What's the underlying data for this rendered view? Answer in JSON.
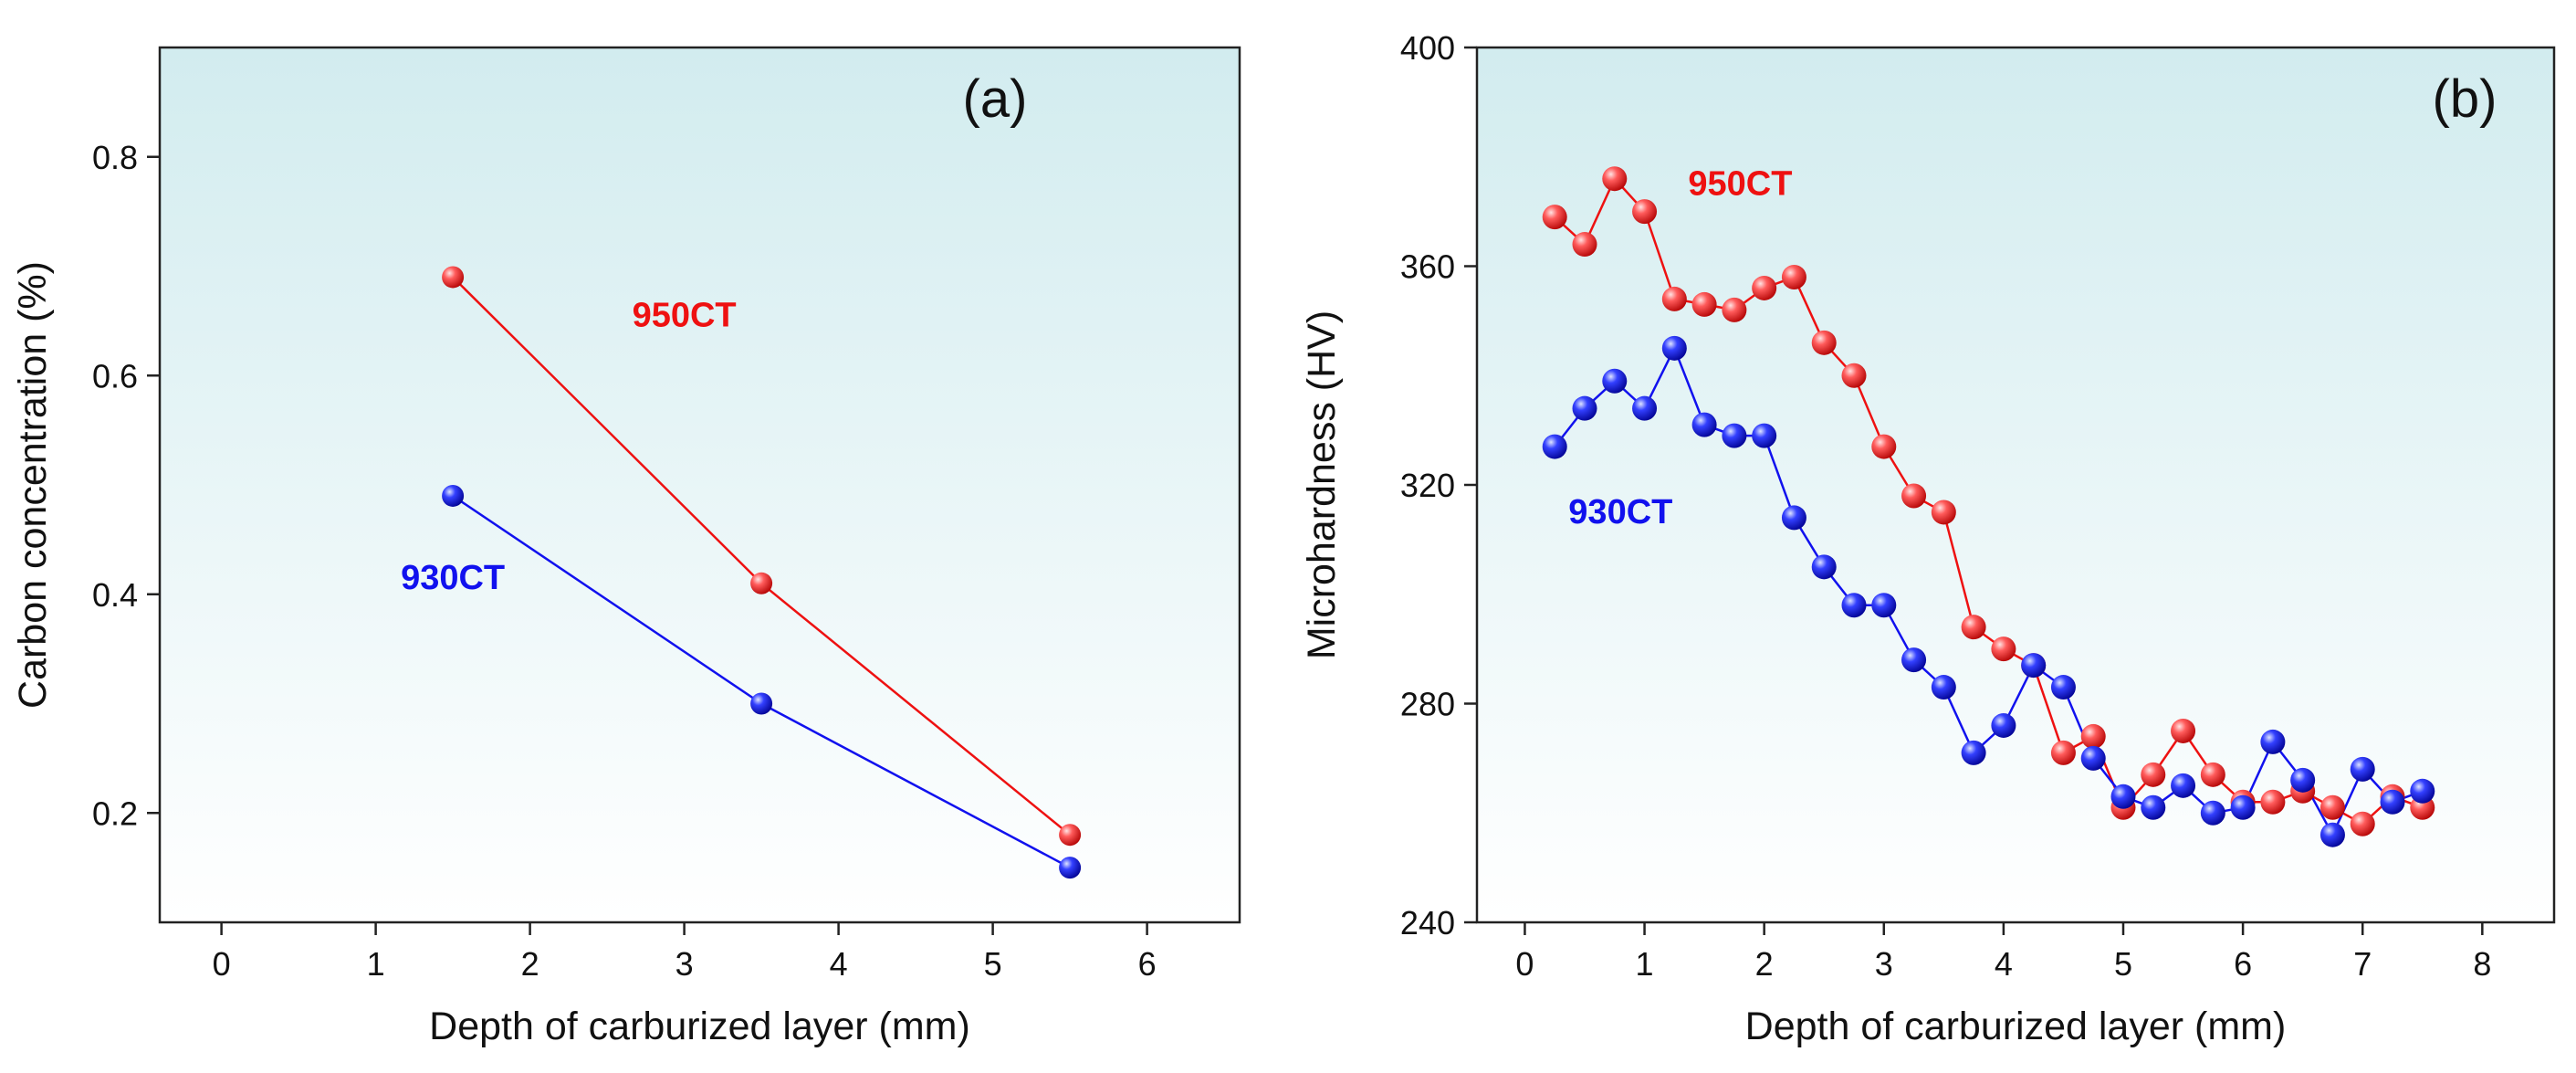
{
  "chart_data": [
    {
      "id": "a",
      "type": "line",
      "panel_label": "(a)",
      "xlabel": "Depth of carburized layer (mm)",
      "ylabel": "Carbon concentration (%)",
      "xlim": [
        -0.4,
        6.6
      ],
      "ylim": [
        0.1,
        0.9
      ],
      "xticks": [
        0,
        1,
        2,
        3,
        4,
        5,
        6
      ],
      "yticks": [
        0.2,
        0.4,
        0.6,
        0.8
      ],
      "ytick_labels": [
        "0.2",
        "0.4",
        "0.6",
        "0.8"
      ],
      "series": [
        {
          "name": "950CT",
          "color": "#ee1111",
          "x": [
            1.5,
            3.5,
            5.5
          ],
          "y": [
            0.69,
            0.41,
            0.18
          ]
        },
        {
          "name": "930CT",
          "color": "#1111ee",
          "x": [
            1.5,
            3.5,
            5.5
          ],
          "y": [
            0.49,
            0.3,
            0.15
          ]
        }
      ],
      "annotations": [
        {
          "text": "950CT",
          "color": "#ee1111",
          "x": 3.0,
          "y": 0.645
        },
        {
          "text": "930CT",
          "color": "#1111ee",
          "x": 1.5,
          "y": 0.405
        }
      ]
    },
    {
      "id": "b",
      "type": "line",
      "panel_label": "(b)",
      "xlabel": "Depth of carburized layer (mm)",
      "ylabel": "Microhardness (HV)",
      "xlim": [
        -0.4,
        8.6
      ],
      "ylim": [
        240,
        400
      ],
      "xticks": [
        0,
        1,
        2,
        3,
        4,
        5,
        6,
        7,
        8
      ],
      "yticks": [
        240,
        280,
        320,
        360,
        400
      ],
      "ytick_labels": [
        "240",
        "280",
        "320",
        "360",
        "400"
      ],
      "series": [
        {
          "name": "950CT",
          "color": "#ee1111",
          "x": [
            0.25,
            0.5,
            0.75,
            1.0,
            1.25,
            1.5,
            1.75,
            2.0,
            2.25,
            2.5,
            2.75,
            3.0,
            3.25,
            3.5,
            3.75,
            4.0,
            4.25,
            4.5,
            4.75,
            5.0,
            5.25,
            5.5,
            5.75,
            6.0,
            6.25,
            6.5,
            6.75,
            7.0,
            7.25,
            7.5
          ],
          "y": [
            369,
            364,
            376,
            370,
            354,
            353,
            352,
            356,
            358,
            346,
            340,
            327,
            318,
            315,
            294,
            290,
            287,
            271,
            274,
            261,
            267,
            275,
            267,
            262,
            262,
            264,
            261,
            258,
            263,
            261
          ]
        },
        {
          "name": "930CT",
          "color": "#1111ee",
          "x": [
            0.25,
            0.5,
            0.75,
            1.0,
            1.25,
            1.5,
            1.75,
            2.0,
            2.25,
            2.5,
            2.75,
            3.0,
            3.25,
            3.5,
            3.75,
            4.0,
            4.25,
            4.5,
            4.75,
            5.0,
            5.25,
            5.5,
            5.75,
            6.0,
            6.25,
            6.5,
            6.75,
            7.0,
            7.25,
            7.5
          ],
          "y": [
            327,
            334,
            339,
            334,
            345,
            331,
            329,
            329,
            314,
            305,
            298,
            298,
            288,
            283,
            271,
            276,
            287,
            283,
            270,
            263,
            261,
            265,
            260,
            261,
            273,
            266,
            256,
            268,
            262,
            264
          ]
        }
      ],
      "annotations": [
        {
          "text": "950CT",
          "color": "#ee1111",
          "x": 1.8,
          "y": 373
        },
        {
          "text": "930CT",
          "color": "#1111ee",
          "x": 0.8,
          "y": 313
        }
      ]
    }
  ]
}
